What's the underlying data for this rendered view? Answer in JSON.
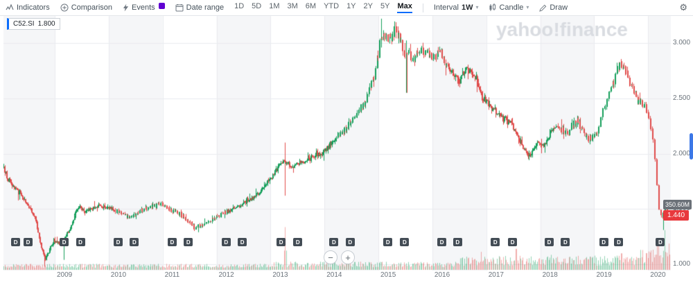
{
  "toolbar": {
    "indicators_label": "Indicators",
    "comparison_label": "Comparison",
    "events_label": "Events",
    "date_range_label": "Date range",
    "ranges": [
      "1D",
      "5D",
      "1M",
      "3M",
      "6M",
      "YTD",
      "1Y",
      "2Y",
      "5Y",
      "Max"
    ],
    "selected_range": "Max",
    "interval_label": "Interval",
    "interval_value": "1W",
    "chart_type_label": "Candle",
    "draw_label": "Draw"
  },
  "legend": {
    "symbol": "C52.SI",
    "price": "1.800"
  },
  "watermark": "yahoo!finance",
  "axis_badges": {
    "volume": "350.60M",
    "last_price": "1.440"
  },
  "zoom_controls": {
    "zoom_out": "−",
    "zoom_in": "+"
  },
  "chart_data": {
    "type": "candlestick",
    "symbol": "C52.SI",
    "interval": "1W",
    "range": "Max",
    "t_min": 2008.05,
    "t_max": 2020.42,
    "candles": 640,
    "ylim": [
      0.95,
      3.25
    ],
    "y_ticks": [
      {
        "value": 1.0,
        "label": "1.000"
      },
      {
        "value": 1.5,
        "label": "1.500"
      },
      {
        "value": 2.0,
        "label": "2.000"
      },
      {
        "value": 2.5,
        "label": "2.500"
      },
      {
        "value": 3.0,
        "label": "3.000"
      }
    ],
    "x_ticks": [
      2009,
      2010,
      2011,
      2012,
      2013,
      2014,
      2015,
      2016,
      2017,
      2018,
      2019,
      2020
    ],
    "last_price": 1.44,
    "last_volume": "350.60M",
    "anchors": [
      [
        2008.05,
        1.88
      ],
      [
        2008.2,
        1.72
      ],
      [
        2008.35,
        1.65
      ],
      [
        2008.5,
        1.55
      ],
      [
        2008.65,
        1.42
      ],
      [
        2008.78,
        1.12
      ],
      [
        2008.85,
        1.05
      ],
      [
        2009.0,
        1.22
      ],
      [
        2009.15,
        1.18
      ],
      [
        2009.3,
        1.32
      ],
      [
        2009.45,
        1.52
      ],
      [
        2009.6,
        1.48
      ],
      [
        2009.8,
        1.52
      ],
      [
        2010.0,
        1.52
      ],
      [
        2010.2,
        1.47
      ],
      [
        2010.4,
        1.42
      ],
      [
        2010.6,
        1.48
      ],
      [
        2010.8,
        1.52
      ],
      [
        2011.0,
        1.55
      ],
      [
        2011.2,
        1.48
      ],
      [
        2011.4,
        1.44
      ],
      [
        2011.6,
        1.33
      ],
      [
        2011.8,
        1.36
      ],
      [
        2012.0,
        1.42
      ],
      [
        2012.2,
        1.47
      ],
      [
        2012.4,
        1.52
      ],
      [
        2012.6,
        1.58
      ],
      [
        2012.8,
        1.64
      ],
      [
        2013.0,
        1.76
      ],
      [
        2013.15,
        1.88
      ],
      [
        2013.27,
        1.95
      ],
      [
        2013.4,
        1.88
      ],
      [
        2013.6,
        1.92
      ],
      [
        2013.8,
        1.98
      ],
      [
        2014.0,
        2.02
      ],
      [
        2014.2,
        2.12
      ],
      [
        2014.4,
        2.22
      ],
      [
        2014.6,
        2.35
      ],
      [
        2014.8,
        2.5
      ],
      [
        2014.95,
        2.72
      ],
      [
        2015.05,
        3.05
      ],
      [
        2015.2,
        3.02
      ],
      [
        2015.35,
        3.12
      ],
      [
        2015.5,
        2.92
      ],
      [
        2015.65,
        2.85
      ],
      [
        2015.8,
        2.95
      ],
      [
        2016.0,
        2.88
      ],
      [
        2016.15,
        2.94
      ],
      [
        2016.3,
        2.78
      ],
      [
        2016.5,
        2.66
      ],
      [
        2016.65,
        2.78
      ],
      [
        2016.8,
        2.7
      ],
      [
        2016.95,
        2.5
      ],
      [
        2017.1,
        2.42
      ],
      [
        2017.3,
        2.34
      ],
      [
        2017.5,
        2.26
      ],
      [
        2017.65,
        2.1
      ],
      [
        2017.8,
        1.97
      ],
      [
        2017.95,
        2.08
      ],
      [
        2018.1,
        2.08
      ],
      [
        2018.3,
        2.26
      ],
      [
        2018.5,
        2.18
      ],
      [
        2018.7,
        2.3
      ],
      [
        2018.9,
        2.12
      ],
      [
        2019.05,
        2.18
      ],
      [
        2019.2,
        2.42
      ],
      [
        2019.35,
        2.62
      ],
      [
        2019.5,
        2.85
      ],
      [
        2019.65,
        2.68
      ],
      [
        2019.8,
        2.5
      ],
      [
        2019.95,
        2.42
      ],
      [
        2020.05,
        2.32
      ],
      [
        2020.15,
        1.95
      ],
      [
        2020.22,
        1.52
      ],
      [
        2020.28,
        1.42
      ],
      [
        2020.33,
        1.55
      ],
      [
        2020.38,
        1.44
      ]
    ],
    "spikes": [
      {
        "t": 2008.8,
        "low": 0.98
      },
      {
        "t": 2009.17,
        "low": 1.04
      },
      {
        "t": 2013.27,
        "high": 2.1,
        "low": 1.62
      },
      {
        "t": 2015.05,
        "high": 3.22
      },
      {
        "t": 2015.52,
        "low": 2.55
      },
      {
        "t": 2020.28,
        "low": 1.31
      }
    ],
    "volume_regimes": [
      [
        2008.0,
        25,
        80
      ],
      [
        2013.0,
        35,
        110
      ],
      [
        2016.5,
        55,
        190
      ],
      [
        2019.85,
        80,
        280
      ]
    ],
    "volume_spikes": [
      [
        2013.27,
        570
      ],
      [
        2014.45,
        190
      ],
      [
        2016.9,
        240
      ],
      [
        2017.55,
        280
      ],
      [
        2018.2,
        200
      ],
      [
        2019.5,
        220
      ],
      [
        2020.18,
        380
      ],
      [
        2020.3,
        530
      ],
      [
        2020.38,
        350.6
      ]
    ],
    "events": {
      "label": "D",
      "type": "dividend",
      "times": [
        2008.27,
        2008.5,
        2009.17,
        2009.47,
        2010.17,
        2010.47,
        2011.17,
        2011.47,
        2012.17,
        2012.47,
        2013.19,
        2013.5,
        2014.17,
        2014.47,
        2015.17,
        2015.48,
        2016.17,
        2016.46,
        2017.16,
        2017.48,
        2018.16,
        2018.46,
        2019.17,
        2019.45,
        2020.22
      ]
    },
    "colors": {
      "up": "#149e5a",
      "down": "#e04b4a",
      "vol_up": "rgba(20,158,90,0.45)",
      "vol_down": "rgba(224,75,74,0.45)",
      "grid": "#e9ebef",
      "band": "#f5f6f8",
      "watermark": "#d9dce1"
    }
  }
}
